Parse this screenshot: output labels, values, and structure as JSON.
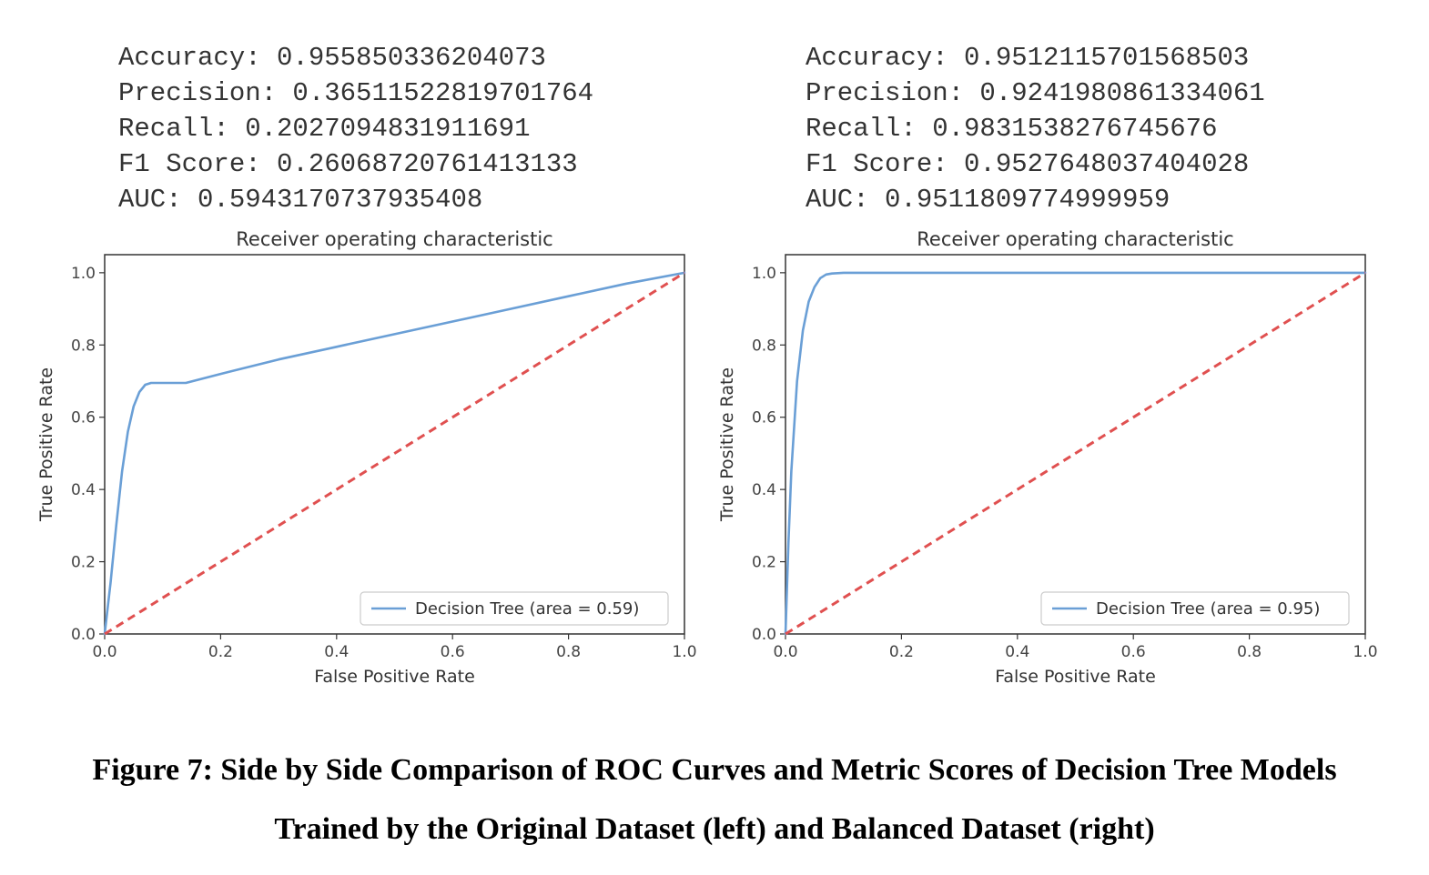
{
  "panels": [
    {
      "metrics": {
        "accuracy": "Accuracy: 0.955850336204073",
        "precision": "Precision: 0.36511522819701764",
        "recall": "Recall: 0.2027094831911691",
        "f1": "F1 Score: 0.26068720761413133",
        "auc": "AUC: 0.5943170737935408"
      }
    },
    {
      "metrics": {
        "accuracy": "Accuracy: 0.9512115701568503",
        "precision": "Precision: 0.9241980861334061",
        "recall": "Recall: 0.9831538276745676",
        "f1": "F1 Score: 0.9527648037404028",
        "auc": "AUC: 0.9511809774999959"
      }
    }
  ],
  "chart_data": [
    {
      "type": "line",
      "title": "Receiver operating characteristic",
      "xlabel": "False Positive Rate",
      "ylabel": "True Positive Rate",
      "xlim": [
        0,
        1
      ],
      "ylim": [
        0,
        1.05
      ],
      "xticks": [
        "0.0",
        "0.2",
        "0.4",
        "0.6",
        "0.8",
        "1.0"
      ],
      "yticks": [
        "0.0",
        "0.2",
        "0.4",
        "0.6",
        "0.8",
        "1.0"
      ],
      "legend_position": "lower-right",
      "series": [
        {
          "name": "Decision Tree (area = 0.59)",
          "color": "#6a9fd6",
          "style": "solid",
          "x": [
            0.0,
            0.01,
            0.02,
            0.03,
            0.04,
            0.05,
            0.06,
            0.07,
            0.08,
            0.1,
            0.14,
            0.2,
            0.3,
            0.4,
            0.5,
            0.6,
            0.7,
            0.8,
            0.9,
            1.0
          ],
          "y": [
            0.0,
            0.14,
            0.3,
            0.45,
            0.56,
            0.63,
            0.67,
            0.69,
            0.695,
            0.695,
            0.695,
            0.72,
            0.76,
            0.795,
            0.83,
            0.865,
            0.9,
            0.935,
            0.97,
            1.0
          ]
        },
        {
          "name": "",
          "color": "#e05050",
          "style": "dashed",
          "x": [
            0.0,
            1.0
          ],
          "y": [
            0.0,
            1.0
          ]
        }
      ]
    },
    {
      "type": "line",
      "title": "Receiver operating characteristic",
      "xlabel": "False Positive Rate",
      "ylabel": "True Positive Rate",
      "xlim": [
        0,
        1
      ],
      "ylim": [
        0,
        1.05
      ],
      "xticks": [
        "0.0",
        "0.2",
        "0.4",
        "0.6",
        "0.8",
        "1.0"
      ],
      "yticks": [
        "0.0",
        "0.2",
        "0.4",
        "0.6",
        "0.8",
        "1.0"
      ],
      "legend_position": "lower-right",
      "series": [
        {
          "name": "Decision Tree (area = 0.95)",
          "color": "#6a9fd6",
          "style": "solid",
          "x": [
            0.0,
            0.005,
            0.01,
            0.02,
            0.03,
            0.04,
            0.05,
            0.06,
            0.07,
            0.08,
            0.1,
            0.15,
            0.2,
            0.4,
            0.6,
            0.8,
            1.0
          ],
          "y": [
            0.0,
            0.25,
            0.45,
            0.7,
            0.84,
            0.92,
            0.96,
            0.985,
            0.995,
            0.998,
            1.0,
            1.0,
            1.0,
            1.0,
            1.0,
            1.0,
            1.0
          ]
        },
        {
          "name": "",
          "color": "#e05050",
          "style": "dashed",
          "x": [
            0.0,
            1.0
          ],
          "y": [
            0.0,
            1.0
          ]
        }
      ]
    }
  ],
  "caption": {
    "line1": "Figure 7: Side by Side Comparison of ROC Curves and Metric Scores of Decision Tree Models",
    "line2": "Trained by the Original Dataset (left) and Balanced Dataset (right)"
  }
}
